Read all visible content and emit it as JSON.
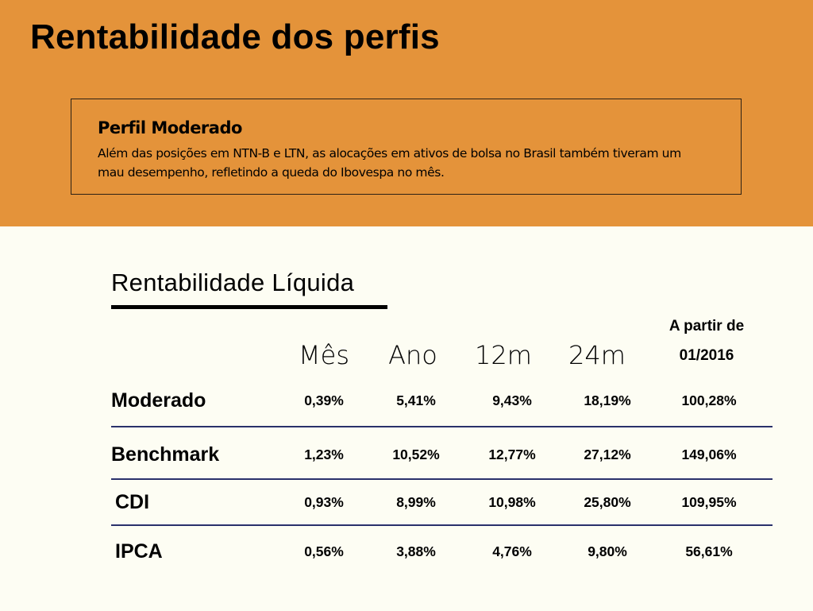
{
  "header": {
    "title": "Rentabilidade dos perfis"
  },
  "profile_box": {
    "heading": "Perfil Moderado",
    "text": "Além das posições em NTN-B e LTN, as alocações em ativos de bolsa no Brasil também tiveram um mau desempenho, refletindo a queda do Ibovespa no mês."
  },
  "table": {
    "title": "Rentabilidade Líquida",
    "columns": [
      "Mês",
      "Ano",
      "12m",
      "24m"
    ],
    "last_column": {
      "line1": "A partir de",
      "line2": "01/2016"
    },
    "rows": [
      {
        "label": "Moderado",
        "values": [
          "0,39%",
          "5,41%",
          "9,43%",
          "18,19%",
          "100,28%"
        ]
      },
      {
        "label": "Benchmark",
        "values": [
          "1,23%",
          "10,52%",
          "12,77%",
          "27,12%",
          "149,06%"
        ]
      },
      {
        "label": "CDI",
        "values": [
          "0,93%",
          "8,99%",
          "10,98%",
          "25,80%",
          "109,95%"
        ]
      },
      {
        "label": "IPCA",
        "values": [
          "0,56%",
          "3,88%",
          "4,76%",
          "9,80%",
          "56,61%"
        ]
      }
    ]
  }
}
